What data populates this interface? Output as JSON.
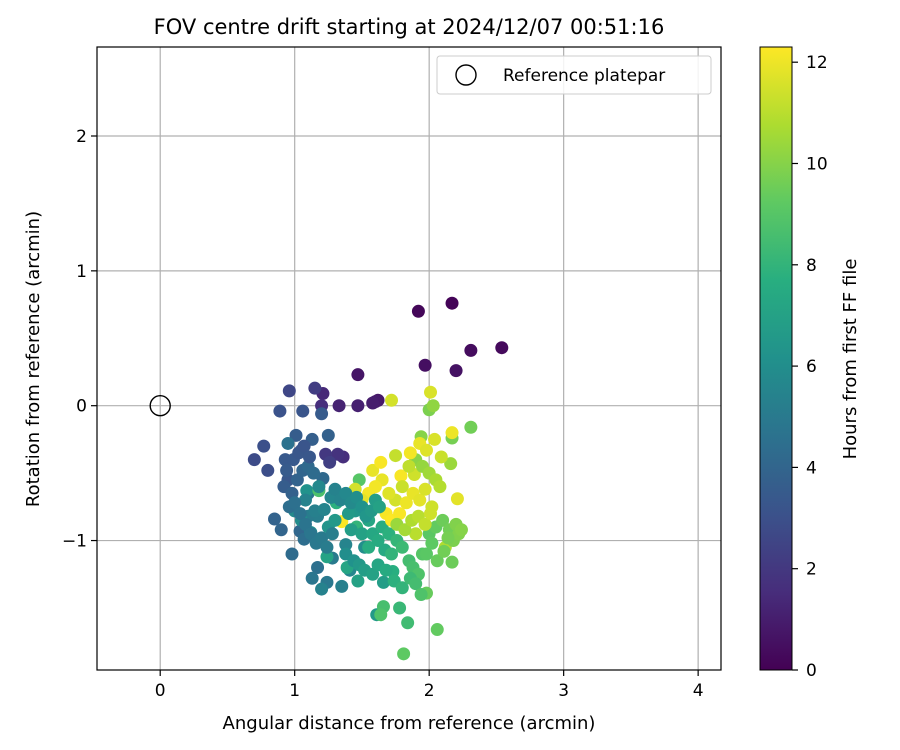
{
  "chart_data": {
    "type": "scatter",
    "title": "FOV centre drift starting at 2024/12/07 00:51:16",
    "xlabel": "Angular distance from reference (arcmin)",
    "ylabel": "Rotation from reference (arcmin)",
    "xlim": [
      -0.47,
      4.17
    ],
    "ylim": [
      -1.96,
      2.66
    ],
    "xticks": [
      0,
      1,
      2,
      3,
      4
    ],
    "xtick_labels": [
      "0",
      "1",
      "2",
      "3",
      "4"
    ],
    "yticks": [
      -1,
      0,
      1,
      2
    ],
    "ytick_labels": [
      "−1",
      "0",
      "1",
      "2"
    ],
    "grid": true,
    "legend": {
      "position": "top-right",
      "entries": [
        "Reference platepar"
      ]
    },
    "reference_point": {
      "x": 0,
      "y": 0
    },
    "colorbar": {
      "label": "Hours from first FF file",
      "colormap": "viridis",
      "range": [
        0,
        12.3
      ],
      "ticks": [
        0,
        2,
        4,
        6,
        8,
        10,
        12
      ],
      "tick_labels": [
        "0",
        "2",
        "4",
        "6",
        "8",
        "10",
        "12"
      ]
    },
    "points": [
      [
        2.17,
        0.76,
        0.1
      ],
      [
        1.92,
        0.7,
        0.2
      ],
      [
        2.54,
        0.43,
        0.3
      ],
      [
        2.31,
        0.41,
        0.4
      ],
      [
        1.97,
        0.3,
        0.5
      ],
      [
        2.2,
        0.26,
        0.6
      ],
      [
        1.47,
        0.23,
        0.7
      ],
      [
        1.62,
        0.04,
        0.8
      ],
      [
        1.6,
        0.03,
        0.9
      ],
      [
        1.58,
        0.02,
        1.0
      ],
      [
        1.47,
        0.0,
        1.1
      ],
      [
        1.33,
        0.0,
        1.2
      ],
      [
        1.21,
        0.09,
        1.4
      ],
      [
        1.36,
        -0.38,
        1.6
      ],
      [
        1.2,
        0.0,
        1.6
      ],
      [
        1.32,
        -0.36,
        1.8
      ],
      [
        1.23,
        -0.36,
        2.0
      ],
      [
        1.15,
        0.13,
        2.2
      ],
      [
        1.26,
        -0.42,
        2.3
      ],
      [
        0.96,
        0.11,
        2.6
      ],
      [
        0.7,
        -0.4,
        2.8
      ],
      [
        0.8,
        -0.48,
        2.9
      ],
      [
        0.77,
        -0.3,
        3.0
      ],
      [
        0.89,
        -0.04,
        3.1
      ],
      [
        1.06,
        -0.04,
        3.2
      ],
      [
        0.95,
        -0.55,
        3.3
      ],
      [
        0.93,
        -0.4,
        3.4
      ],
      [
        1.05,
        -0.33,
        3.4
      ],
      [
        1.2,
        -0.06,
        3.5
      ],
      [
        1.01,
        -0.22,
        3.6
      ],
      [
        1.13,
        -0.25,
        3.7
      ],
      [
        1.25,
        -0.22,
        3.8
      ],
      [
        0.85,
        -0.84,
        3.9
      ],
      [
        0.9,
        -0.92,
        4.0
      ],
      [
        1.04,
        -0.93,
        4.1
      ],
      [
        1.21,
        -0.54,
        4.2
      ],
      [
        0.98,
        -1.1,
        4.3
      ],
      [
        1.07,
        -0.99,
        4.4
      ],
      [
        1.17,
        -1.2,
        4.5
      ],
      [
        0.95,
        -0.28,
        4.6
      ],
      [
        1.1,
        -0.65,
        4.7
      ],
      [
        1.13,
        -1.28,
        4.8
      ],
      [
        1.24,
        -1.31,
        4.9
      ],
      [
        1.28,
        -1.13,
        5.0
      ],
      [
        1.17,
        -0.82,
        5.2
      ],
      [
        1.35,
        -1.34,
        5.3
      ],
      [
        1.2,
        -1.36,
        5.4
      ],
      [
        1.38,
        -1.03,
        5.5
      ],
      [
        1.41,
        -1.22,
        5.6
      ],
      [
        1.0,
        -0.78,
        5.8
      ],
      [
        1.52,
        -1.05,
        6.0
      ],
      [
        1.09,
        -0.63,
        6.2
      ],
      [
        1.45,
        -0.78,
        6.4
      ],
      [
        1.61,
        -1.55,
        6.6
      ],
      [
        1.66,
        -1.31,
        6.8
      ],
      [
        1.47,
        -1.3,
        7.0
      ],
      [
        1.24,
        -1.12,
        7.1
      ],
      [
        1.39,
        -1.2,
        7.2
      ],
      [
        1.67,
        -1.07,
        7.4
      ],
      [
        1.55,
        -1.05,
        7.6
      ],
      [
        1.73,
        -1.23,
        7.7
      ],
      [
        1.31,
        -0.72,
        7.8
      ],
      [
        1.46,
        -0.9,
        8.0
      ],
      [
        1.78,
        -1.5,
        8.2
      ],
      [
        1.84,
        -1.61,
        8.4
      ],
      [
        1.66,
        -1.49,
        8.6
      ],
      [
        1.18,
        -0.63,
        8.7
      ],
      [
        1.64,
        -1.55,
        8.8
      ],
      [
        1.48,
        -0.55,
        9.0
      ],
      [
        1.81,
        -1.84,
        9.2
      ],
      [
        2.06,
        -1.66,
        9.3
      ],
      [
        1.98,
        -1.39,
        9.4
      ],
      [
        2.17,
        -1.16,
        9.5
      ],
      [
        2.31,
        -0.16,
        9.6
      ],
      [
        2.17,
        -0.24,
        9.7
      ],
      [
        2.0,
        -0.03,
        9.8
      ],
      [
        1.94,
        -0.23,
        10.0
      ],
      [
        2.03,
        0.0,
        10.2
      ],
      [
        2.16,
        -0.43,
        10.4
      ],
      [
        1.62,
        -0.75,
        10.6
      ],
      [
        2.12,
        -1.05,
        10.8
      ],
      [
        1.9,
        -0.95,
        11.0
      ],
      [
        1.75,
        -0.37,
        11.2
      ],
      [
        1.89,
        -0.51,
        11.4
      ],
      [
        1.72,
        0.04,
        11.5
      ],
      [
        2.01,
        0.1,
        11.6
      ],
      [
        2.21,
        -0.69,
        11.8
      ],
      [
        2.17,
        -0.2,
        12.0
      ],
      [
        1.79,
        -0.52,
        12.2
      ],
      [
        1.35,
        -0.86,
        12.3
      ],
      [
        1.1,
        -0.82,
        5.1
      ],
      [
        1.15,
        -0.78,
        5.3
      ],
      [
        1.08,
        -0.7,
        5.4
      ],
      [
        1.22,
        -0.77,
        5.5
      ],
      [
        1.27,
        -0.68,
        5.6
      ],
      [
        1.18,
        -0.6,
        5.7
      ],
      [
        1.05,
        -0.85,
        5.9
      ],
      [
        1.12,
        -0.94,
        6.1
      ],
      [
        1.25,
        -0.9,
        6.3
      ],
      [
        1.3,
        -0.85,
        6.5
      ],
      [
        1.4,
        -0.8,
        6.6
      ],
      [
        1.42,
        -0.92,
        6.8
      ],
      [
        1.5,
        -0.95,
        7.0
      ],
      [
        1.55,
        -0.85,
        7.2
      ],
      [
        1.58,
        -0.95,
        7.3
      ],
      [
        1.62,
        -1.0,
        7.5
      ],
      [
        1.65,
        -0.9,
        7.6
      ],
      [
        1.7,
        -0.95,
        7.8
      ],
      [
        1.72,
        -1.1,
        8.0
      ],
      [
        1.76,
        -1.0,
        8.1
      ],
      [
        1.8,
        -1.05,
        8.3
      ],
      [
        1.85,
        -1.15,
        8.5
      ],
      [
        1.88,
        -1.2,
        8.6
      ],
      [
        1.92,
        -1.25,
        8.8
      ],
      [
        1.95,
        -1.1,
        9.0
      ],
      [
        2.0,
        -0.95,
        9.1
      ],
      [
        2.05,
        -0.9,
        9.3
      ],
      [
        2.1,
        -0.85,
        9.5
      ],
      [
        2.15,
        -0.92,
        9.6
      ],
      [
        2.18,
        -1.0,
        9.8
      ],
      [
        2.22,
        -0.95,
        9.9
      ],
      [
        1.9,
        -0.4,
        10.1
      ],
      [
        1.95,
        -0.45,
        10.3
      ],
      [
        2.0,
        -0.5,
        10.5
      ],
      [
        2.05,
        -0.55,
        10.7
      ],
      [
        2.08,
        -0.6,
        10.9
      ],
      [
        1.85,
        -0.45,
        11.1
      ],
      [
        1.8,
        -0.6,
        11.3
      ],
      [
        1.75,
        -0.7,
        11.5
      ],
      [
        1.7,
        -0.65,
        11.7
      ],
      [
        1.65,
        -0.55,
        11.9
      ],
      [
        1.6,
        -0.6,
        12.1
      ],
      [
        1.68,
        -0.8,
        12.2
      ],
      [
        1.72,
        -0.85,
        12.3
      ],
      [
        1.78,
        -0.8,
        12.2
      ],
      [
        1.83,
        -0.72,
        12.0
      ],
      [
        1.88,
        -0.65,
        11.9
      ],
      [
        1.93,
        -0.7,
        11.8
      ],
      [
        1.97,
        -0.62,
        11.6
      ],
      [
        2.02,
        -0.75,
        11.4
      ],
      [
        1.55,
        -0.65,
        12.1
      ],
      [
        1.5,
        -0.7,
        11.8
      ],
      [
        1.45,
        -0.62,
        11.5
      ],
      [
        1.58,
        -0.48,
        11.9
      ],
      [
        1.64,
        -0.42,
        12.2
      ],
      [
        1.86,
        -0.35,
        12.1
      ],
      [
        1.93,
        -0.28,
        11.9
      ],
      [
        1.98,
        -0.33,
        11.7
      ],
      [
        2.04,
        -0.25,
        11.6
      ],
      [
        2.09,
        -0.38,
        11.3
      ],
      [
        0.92,
        -0.6,
        3.6
      ],
      [
        0.98,
        -0.65,
        3.8
      ],
      [
        1.02,
        -0.55,
        3.9
      ],
      [
        1.06,
        -0.48,
        4.0
      ],
      [
        1.1,
        -0.45,
        4.2
      ],
      [
        1.14,
        -0.5,
        4.3
      ],
      [
        0.96,
        -0.75,
        4.4
      ],
      [
        1.0,
        -0.72,
        4.5
      ],
      [
        1.04,
        -0.8,
        4.6
      ],
      [
        1.08,
        -0.88,
        4.7
      ],
      [
        1.12,
        -0.95,
        4.8
      ],
      [
        1.16,
        -1.02,
        4.9
      ],
      [
        1.2,
        -0.98,
        5.0
      ],
      [
        1.24,
        -1.05,
        5.1
      ],
      [
        1.28,
        -0.95,
        5.2
      ],
      [
        0.94,
        -0.48,
        3.5
      ],
      [
        0.99,
        -0.4,
        3.4
      ],
      [
        1.03,
        -0.35,
        3.3
      ],
      [
        1.07,
        -0.3,
        3.2
      ],
      [
        1.11,
        -0.38,
        3.3
      ],
      [
        1.3,
        -0.62,
        5.4
      ],
      [
        1.34,
        -0.7,
        5.5
      ],
      [
        1.38,
        -0.65,
        5.7
      ],
      [
        1.42,
        -0.72,
        5.8
      ],
      [
        1.46,
        -0.68,
        6.0
      ],
      [
        1.5,
        -0.75,
        6.2
      ],
      [
        1.53,
        -0.82,
        6.4
      ],
      [
        1.57,
        -0.78,
        6.6
      ],
      [
        1.6,
        -0.7,
        6.8
      ],
      [
        1.63,
        -0.75,
        7.0
      ],
      [
        1.38,
        -1.1,
        6.0
      ],
      [
        1.44,
        -1.15,
        6.2
      ],
      [
        1.48,
        -1.18,
        6.5
      ],
      [
        1.52,
        -1.22,
        6.8
      ],
      [
        1.58,
        -1.25,
        7.0
      ],
      [
        1.62,
        -1.18,
        7.2
      ],
      [
        1.68,
        -1.22,
        7.5
      ],
      [
        1.74,
        -1.3,
        7.8
      ],
      [
        1.8,
        -1.35,
        8.0
      ],
      [
        1.86,
        -1.28,
        8.3
      ],
      [
        1.9,
        -1.32,
        8.5
      ],
      [
        1.94,
        -1.4,
        8.8
      ],
      [
        1.98,
        -1.1,
        9.1
      ],
      [
        2.02,
        -1.02,
        9.2
      ],
      [
        2.06,
        -1.15,
        9.4
      ],
      [
        2.11,
        -1.08,
        9.6
      ],
      [
        2.14,
        -0.98,
        9.7
      ],
      [
        2.2,
        -0.88,
        9.9
      ],
      [
        2.24,
        -0.92,
        10.0
      ],
      [
        1.76,
        -0.88,
        10.4
      ],
      [
        1.82,
        -0.92,
        10.6
      ],
      [
        1.87,
        -0.85,
        10.8
      ],
      [
        1.92,
        -0.82,
        11.0
      ],
      [
        1.97,
        -0.88,
        11.2
      ],
      [
        2.01,
        -0.8,
        11.4
      ]
    ]
  }
}
